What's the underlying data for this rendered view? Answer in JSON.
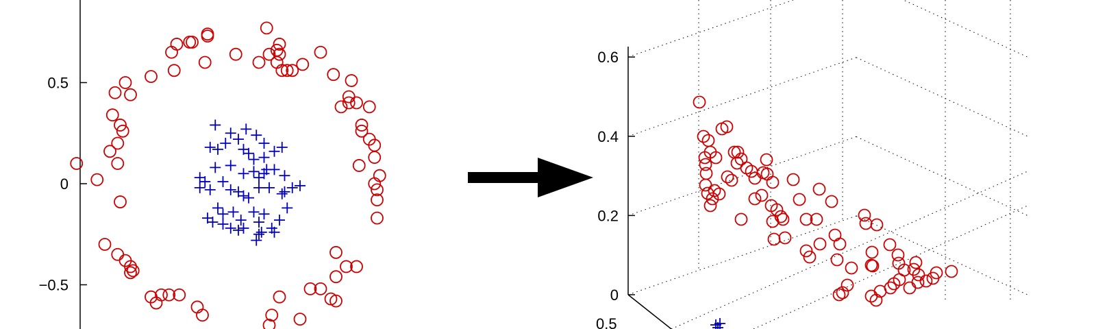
{
  "chart_data": [
    {
      "type": "scatter",
      "title": "",
      "xlabel": "",
      "ylabel": "",
      "ylim": [
        -0.75,
        1.0
      ],
      "xlim": [
        -0.85,
        0.75
      ],
      "y_tick_labels": [
        "0.5",
        "0",
        "−0.5"
      ],
      "y_ticks": [
        0.5,
        0,
        -0.5
      ],
      "grid": false,
      "colors": {
        "outer": "#cc0000",
        "inner": "#0000bb"
      },
      "series": [
        {
          "marker": "circle",
          "color": "#cc0000",
          "points": [
            [
              -0.75,
              0.1
            ],
            [
              -0.67,
              0.02
            ],
            [
              -0.62,
              0.16
            ],
            [
              -0.61,
              0.34
            ],
            [
              -0.58,
              0.29
            ],
            [
              -0.59,
              0.2
            ],
            [
              -0.59,
              0.1
            ],
            [
              -0.57,
              0.26
            ],
            [
              -0.58,
              -0.09
            ],
            [
              -0.6,
              0.45
            ],
            [
              -0.56,
              0.5
            ],
            [
              -0.54,
              0.44
            ],
            [
              -0.46,
              0.53
            ],
            [
              -0.38,
              0.65
            ],
            [
              -0.36,
              0.69
            ],
            [
              -0.31,
              0.7
            ],
            [
              -0.3,
              0.7
            ],
            [
              -0.24,
              0.74
            ],
            [
              -0.24,
              0.73
            ],
            [
              -0.37,
              0.56
            ],
            [
              -0.25,
              0.6
            ],
            [
              -0.13,
              0.64
            ],
            [
              -0.04,
              0.6
            ],
            [
              -0.01,
              0.77
            ],
            [
              0.0,
              0.64
            ],
            [
              0.03,
              0.66
            ],
            [
              0.04,
              0.69
            ],
            [
              0.03,
              0.6
            ],
            [
              0.05,
              0.56
            ],
            [
              0.07,
              0.56
            ],
            [
              0.09,
              0.56
            ],
            [
              0.04,
              0.64
            ],
            [
              0.13,
              0.59
            ],
            [
              0.2,
              0.65
            ],
            [
              0.25,
              0.54
            ],
            [
              0.32,
              0.51
            ],
            [
              0.31,
              0.43
            ],
            [
              0.28,
              0.38
            ],
            [
              0.31,
              0.4
            ],
            [
              0.34,
              0.4
            ],
            [
              0.39,
              0.38
            ],
            [
              0.36,
              0.29
            ],
            [
              0.36,
              0.26
            ],
            [
              0.39,
              0.22
            ],
            [
              0.41,
              0.19
            ],
            [
              0.41,
              0.13
            ],
            [
              0.35,
              0.09
            ],
            [
              0.43,
              0.04
            ],
            [
              0.41,
              0.0
            ],
            [
              0.42,
              -0.03
            ],
            [
              0.42,
              -0.08
            ],
            [
              0.42,
              -0.17
            ],
            [
              -0.64,
              -0.3
            ],
            [
              -0.59,
              -0.35
            ],
            [
              -0.56,
              -0.38
            ],
            [
              -0.54,
              -0.41
            ],
            [
              -0.53,
              -0.43
            ],
            [
              -0.54,
              -0.44
            ],
            [
              -0.46,
              -0.56
            ],
            [
              -0.44,
              -0.59
            ],
            [
              -0.42,
              -0.55
            ],
            [
              -0.39,
              -0.55
            ],
            [
              -0.35,
              -0.55
            ],
            [
              -0.28,
              -0.61
            ],
            [
              -0.26,
              -0.65
            ],
            [
              0.01,
              -0.65
            ],
            [
              0.0,
              -0.7
            ],
            [
              0.04,
              -0.56
            ],
            [
              0.12,
              -0.67
            ],
            [
              0.16,
              -0.52
            ],
            [
              0.2,
              -0.52
            ],
            [
              0.24,
              -0.57
            ],
            [
              0.26,
              -0.58
            ],
            [
              0.26,
              -0.46
            ],
            [
              0.26,
              -0.34
            ],
            [
              0.3,
              -0.41
            ],
            [
              0.34,
              -0.41
            ]
          ]
        },
        {
          "marker": "plus",
          "color": "#0000bb",
          "points": [
            [
              -0.21,
              0.29
            ],
            [
              -0.17,
              0.2
            ],
            [
              -0.15,
              0.25
            ],
            [
              -0.12,
              0.22
            ],
            [
              -0.09,
              0.27
            ],
            [
              -0.05,
              0.24
            ],
            [
              -0.02,
              0.2
            ],
            [
              0.02,
              0.16
            ],
            [
              -0.23,
              0.18
            ],
            [
              -0.2,
              0.17
            ],
            [
              -0.1,
              0.17
            ],
            [
              -0.08,
              0.15
            ],
            [
              -0.06,
              0.12
            ],
            [
              -0.02,
              0.13
            ],
            [
              0.05,
              0.18
            ],
            [
              -0.21,
              0.08
            ],
            [
              -0.15,
              0.09
            ],
            [
              -0.1,
              0.05
            ],
            [
              -0.06,
              0.06
            ],
            [
              -0.02,
              0.05
            ],
            [
              -0.01,
              0.07
            ],
            [
              -0.04,
              0.03
            ],
            [
              0.02,
              0.07
            ],
            [
              0.06,
              0.04
            ],
            [
              -0.27,
              0.03
            ],
            [
              -0.27,
              -0.02
            ],
            [
              -0.25,
              0.01
            ],
            [
              -0.23,
              -0.03
            ],
            [
              -0.18,
              0.01
            ],
            [
              -0.15,
              -0.03
            ],
            [
              -0.12,
              -0.04
            ],
            [
              -0.1,
              -0.06
            ],
            [
              -0.08,
              -0.07
            ],
            [
              -0.04,
              -0.02
            ],
            [
              0.0,
              -0.02
            ],
            [
              0.05,
              -0.05
            ],
            [
              0.09,
              -0.02
            ],
            [
              0.12,
              -0.01
            ],
            [
              -0.2,
              -0.12
            ],
            [
              -0.18,
              -0.15
            ],
            [
              -0.24,
              -0.17
            ],
            [
              -0.22,
              -0.19
            ],
            [
              -0.18,
              -0.2
            ],
            [
              -0.14,
              -0.14
            ],
            [
              -0.11,
              -0.18
            ],
            [
              -0.15,
              -0.22
            ],
            [
              -0.12,
              -0.23
            ],
            [
              -0.1,
              -0.22
            ],
            [
              -0.06,
              -0.14
            ],
            [
              -0.04,
              -0.19
            ],
            [
              -0.02,
              -0.15
            ],
            [
              0.01,
              -0.22
            ],
            [
              0.04,
              -0.18
            ],
            [
              0.07,
              -0.12
            ],
            [
              -0.05,
              -0.28
            ],
            [
              -0.04,
              -0.25
            ],
            [
              -0.03,
              -0.24
            ],
            [
              0.06,
              -0.04
            ],
            [
              0.02,
              -0.24
            ]
          ]
        }
      ]
    },
    {
      "type": "scatter",
      "title": "",
      "projection": "3d",
      "zlabel_ticks": [
        "0.6",
        "0.4",
        "0.2",
        "0"
      ],
      "z_ticks": [
        0.6,
        0.4,
        0.2,
        0
      ],
      "x_tick_partial": "0.5",
      "grid": true,
      "colors": {
        "outer": "#cc0000",
        "inner": "#0000bb"
      }
    }
  ],
  "arrow": {
    "direction": "right",
    "color": "#000000"
  }
}
